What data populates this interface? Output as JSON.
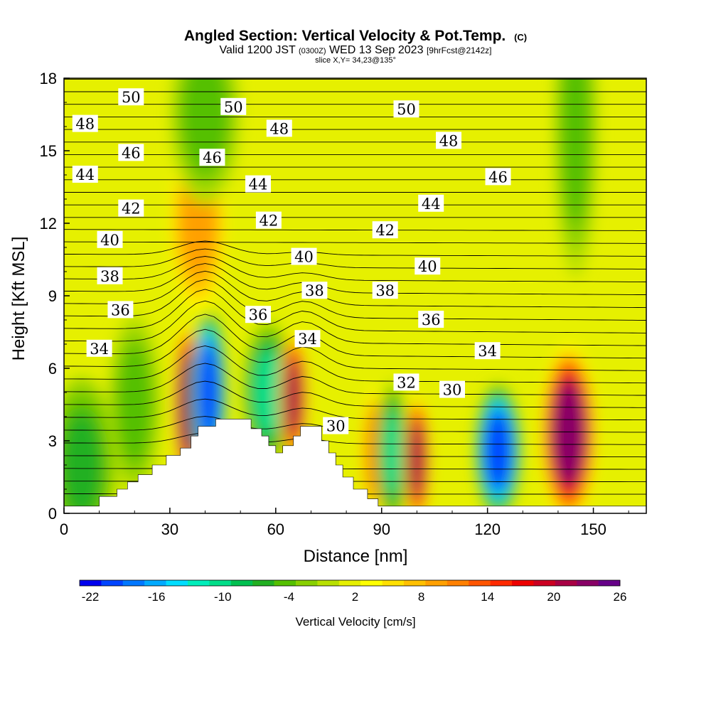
{
  "header": {
    "title": "Angled Section: Vertical Velocity & Pot.Temp.",
    "title_unit": "(C)",
    "valid_prefix": "Valid 1200 JST",
    "valid_utc": "(0300Z)",
    "valid_date": "WED 13 Sep 2023",
    "forecast": "[9hrFcst@2142z]",
    "slice": "slice X,Y= 34,23@135°"
  },
  "colorbar": {
    "label": "Vertical Velocity [cm/s]",
    "tick_labels": [
      "-22",
      "-16",
      "-10",
      "-4",
      "2",
      "8",
      "14",
      "20",
      "26"
    ],
    "colors": [
      "#0000ee",
      "#0044ff",
      "#0077ff",
      "#00aaff",
      "#00ddff",
      "#00eebb",
      "#00dd88",
      "#00c050",
      "#22b022",
      "#55c000",
      "#88d000",
      "#b8e000",
      "#e6f000",
      "#ffff00",
      "#ffe000",
      "#ffc000",
      "#ffa000",
      "#ff8000",
      "#ff5500",
      "#ff2a00",
      "#ee0000",
      "#cc0022",
      "#a80044",
      "#880066",
      "#660088"
    ]
  },
  "chart_data": {
    "type": "heatmap",
    "title": "Angled Section: Vertical Velocity & Pot.Temp.",
    "xlabel": "Distance [nm]",
    "ylabel": "Height [Kft MSL]",
    "xlim": [
      0,
      165
    ],
    "ylim": [
      0,
      18
    ],
    "x_ticks": [
      0,
      30,
      60,
      90,
      120,
      150
    ],
    "y_ticks": [
      0,
      3,
      6,
      9,
      12,
      15,
      18
    ],
    "background_value": 0,
    "velocity_features": [
      {
        "x": 35,
        "y": 4.5,
        "sx": 1.6,
        "sy": 1.4,
        "value": 22
      },
      {
        "x": 41,
        "y": 5.0,
        "sx": 2.0,
        "sy": 1.4,
        "value": -22
      },
      {
        "x": 58,
        "y": 5.0,
        "sx": 3.0,
        "sy": 1.2,
        "value": -11
      },
      {
        "x": 65,
        "y": 4.8,
        "sx": 1.6,
        "sy": 1.1,
        "value": 20
      },
      {
        "x": 88,
        "y": 2.5,
        "sx": 1.6,
        "sy": 1.2,
        "value": 10
      },
      {
        "x": 93,
        "y": 2.5,
        "sx": 1.8,
        "sy": 1.2,
        "value": -11
      },
      {
        "x": 100,
        "y": 2.2,
        "sx": 1.5,
        "sy": 1.1,
        "value": 20
      },
      {
        "x": 123,
        "y": 2.6,
        "sx": 2.6,
        "sy": 1.1,
        "value": -22
      },
      {
        "x": 143,
        "y": 3.3,
        "sx": 3.2,
        "sy": 1.5,
        "value": 22
      },
      {
        "x": 38,
        "y": 12.0,
        "sx": 3.5,
        "sy": 1.6,
        "value": 9
      },
      {
        "x": 40,
        "y": 16.5,
        "sx": 4.0,
        "sy": 1.5,
        "value": -6
      },
      {
        "x": 145,
        "y": 16.0,
        "sx": 2.5,
        "sy": 2.5,
        "value": -5
      },
      {
        "x": 5,
        "y": 2.0,
        "sx": 4.0,
        "sy": 1.5,
        "value": -7
      },
      {
        "x": 20,
        "y": 4.5,
        "sx": 3.0,
        "sy": 1.5,
        "value": -6
      }
    ],
    "terrain": [
      [
        0,
        0.3
      ],
      [
        10,
        0.3
      ],
      [
        10,
        0.7
      ],
      [
        15,
        0.7
      ],
      [
        15,
        1.0
      ],
      [
        18,
        1.0
      ],
      [
        18,
        1.3
      ],
      [
        21,
        1.3
      ],
      [
        21,
        1.6
      ],
      [
        25,
        1.6
      ],
      [
        25,
        2.0
      ],
      [
        29,
        2.0
      ],
      [
        29,
        2.4
      ],
      [
        33,
        2.4
      ],
      [
        33,
        2.7
      ],
      [
        36,
        2.7
      ],
      [
        36,
        3.2
      ],
      [
        38,
        3.2
      ],
      [
        38,
        3.6
      ],
      [
        43,
        3.6
      ],
      [
        43,
        3.9
      ],
      [
        53,
        3.9
      ],
      [
        53,
        3.5
      ],
      [
        56,
        3.5
      ],
      [
        56,
        3.2
      ],
      [
        58,
        3.2
      ],
      [
        58,
        2.8
      ],
      [
        60,
        2.8
      ],
      [
        60,
        2.5
      ],
      [
        62,
        2.5
      ],
      [
        62,
        2.8
      ],
      [
        65,
        2.8
      ],
      [
        65,
        3.2
      ],
      [
        67,
        3.2
      ],
      [
        67,
        3.6
      ],
      [
        73,
        3.6
      ],
      [
        73,
        3.0
      ],
      [
        75,
        3.0
      ],
      [
        75,
        2.5
      ],
      [
        77,
        2.5
      ],
      [
        77,
        2.0
      ],
      [
        79,
        2.0
      ],
      [
        79,
        1.5
      ],
      [
        82,
        1.5
      ],
      [
        82,
        1.0
      ],
      [
        86,
        1.0
      ],
      [
        86,
        0.6
      ],
      [
        89,
        0.6
      ],
      [
        89,
        0.3
      ],
      [
        165,
        0.3
      ]
    ],
    "isentropes": {
      "label": "Pot.Temp.",
      "unit": "C",
      "labels": [
        {
          "text": "50",
          "x": 19,
          "y": 17.2
        },
        {
          "text": "50",
          "x": 48,
          "y": 16.8
        },
        {
          "text": "50",
          "x": 97,
          "y": 16.7
        },
        {
          "text": "48",
          "x": 6,
          "y": 16.1
        },
        {
          "text": "48",
          "x": 61,
          "y": 15.9
        },
        {
          "text": "48",
          "x": 109,
          "y": 15.4
        },
        {
          "text": "46",
          "x": 19,
          "y": 14.9
        },
        {
          "text": "46",
          "x": 42,
          "y": 14.7
        },
        {
          "text": "46",
          "x": 123,
          "y": 13.9
        },
        {
          "text": "44",
          "x": 6,
          "y": 14.0
        },
        {
          "text": "44",
          "x": 55,
          "y": 13.6
        },
        {
          "text": "44",
          "x": 104,
          "y": 12.8
        },
        {
          "text": "42",
          "x": 19,
          "y": 12.6
        },
        {
          "text": "42",
          "x": 58,
          "y": 12.1
        },
        {
          "text": "42",
          "x": 91,
          "y": 11.7
        },
        {
          "text": "40",
          "x": 13,
          "y": 11.3
        },
        {
          "text": "40",
          "x": 68,
          "y": 10.6
        },
        {
          "text": "40",
          "x": 103,
          "y": 10.2
        },
        {
          "text": "38",
          "x": 13,
          "y": 9.8
        },
        {
          "text": "38",
          "x": 71,
          "y": 9.2
        },
        {
          "text": "38",
          "x": 91,
          "y": 9.2
        },
        {
          "text": "36",
          "x": 16,
          "y": 8.4
        },
        {
          "text": "36",
          "x": 55,
          "y": 8.2
        },
        {
          "text": "36",
          "x": 104,
          "y": 8.0
        },
        {
          "text": "34",
          "x": 10,
          "y": 6.8
        },
        {
          "text": "34",
          "x": 69,
          "y": 7.2
        },
        {
          "text": "34",
          "x": 120,
          "y": 6.7
        },
        {
          "text": "32",
          "x": 97,
          "y": 5.4
        },
        {
          "text": "30",
          "x": 110,
          "y": 5.1
        },
        {
          "text": "30",
          "x": 77,
          "y": 3.6
        }
      ]
    }
  }
}
